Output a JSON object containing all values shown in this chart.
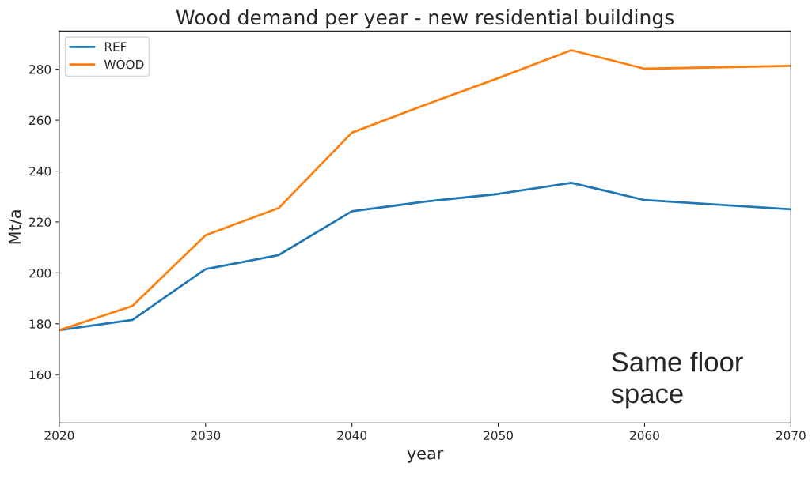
{
  "chart_data": {
    "type": "line",
    "title": "Wood demand per year - new residential buildings",
    "xlabel": "year",
    "ylabel": "Mt/a",
    "x": [
      2020,
      2025,
      2030,
      2035,
      2040,
      2045,
      2050,
      2055,
      2060,
      2070
    ],
    "series": [
      {
        "name": "REF",
        "color": "#1f77b4",
        "values": [
          177.5,
          181.5,
          201.5,
          207,
          224.2,
          228,
          231,
          235.4,
          228.6,
          225
        ]
      },
      {
        "name": "WOOD",
        "color": "#ff7f0e",
        "values": [
          177.5,
          187,
          214.8,
          225.5,
          255.1,
          266,
          276.5,
          287.5,
          280.2,
          281.3
        ]
      }
    ],
    "xlim": [
      2020,
      2070
    ],
    "xticks": [
      2020,
      2030,
      2040,
      2050,
      2060,
      2070
    ],
    "ylim": [
      141,
      295
    ],
    "yticks": [
      160,
      180,
      200,
      220,
      240,
      260,
      280
    ],
    "grid": false,
    "legend": "top left",
    "annotations": [
      "Same floor space"
    ]
  }
}
